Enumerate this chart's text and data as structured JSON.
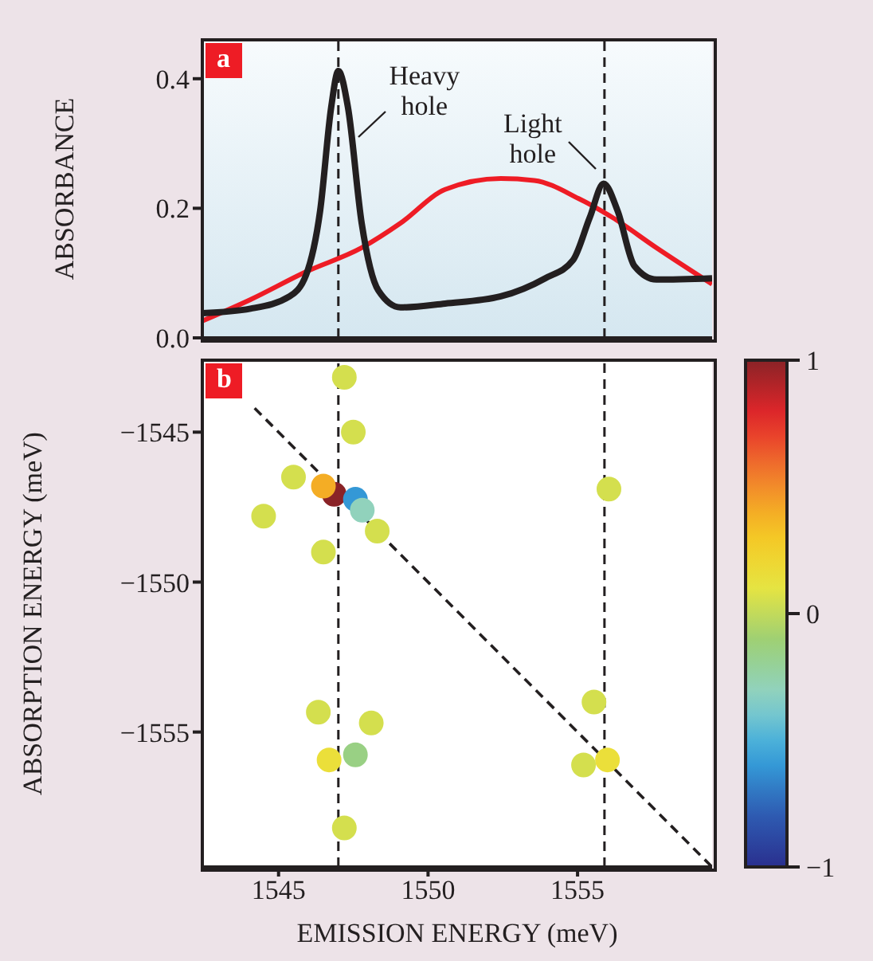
{
  "chart_data": [
    {
      "type": "line",
      "ylabel": "ABSORBANCE",
      "xlim": [
        1542.45,
        1559.5
      ],
      "ylim": [
        0,
        0.46
      ],
      "yticks": [
        {
          "value": 0,
          "label": "0.0"
        },
        0.2,
        0.4
      ],
      "tick_labels": "y",
      "grid": false,
      "line_style": "solid",
      "series": [
        {
          "color": "#ee1c25",
          "x": [
            1542.45,
            1544.06,
            1545.92,
            1547.78,
            1549.08,
            1550.57,
            1552.43,
            1553.55,
            1555.04,
            1556.16,
            1557.64,
            1559.5
          ],
          "values": [
            0.026,
            0.059,
            0.102,
            0.139,
            0.177,
            0.229,
            0.246,
            0.243,
            0.215,
            0.186,
            0.139,
            0.083
          ]
        },
        {
          "color": "#231f20",
          "x": [
            1542.45,
            1544.06,
            1545.37,
            1545.92,
            1546.39,
            1546.76,
            1547.0,
            1547.32,
            1547.78,
            1548.34,
            1549.08,
            1550.57,
            1552.43,
            1553.92,
            1554.85,
            1555.41,
            1555.87,
            1556.34,
            1556.9,
            1557.64,
            1559.5
          ],
          "values": [
            0.038,
            0.045,
            0.064,
            0.097,
            0.196,
            0.356,
            0.412,
            0.356,
            0.177,
            0.073,
            0.047,
            0.053,
            0.064,
            0.092,
            0.12,
            0.186,
            0.238,
            0.196,
            0.111,
            0.09,
            0.092
          ]
        }
      ],
      "ref_lines": [
        {
          "axis": "x",
          "value": 1547.0,
          "color": "#231f20",
          "line_style": "dashed"
        },
        {
          "axis": "x",
          "value": 1555.9,
          "color": "#231f20",
          "line_style": "dashed"
        }
      ],
      "annotations": [
        "a",
        {
          "text": "Heavy hole",
          "x": 1547.0,
          "y": 0.41
        },
        {
          "text": "Light hole",
          "x": 1555.9,
          "y": 0.24
        }
      ]
    },
    {
      "type": "scatter",
      "xlabel": "EMISSION ENERGY (meV)",
      "ylabel": "ABSORPTION ENERGY (meV)",
      "xlim": [
        1542.45,
        1559.5
      ],
      "ylim": [
        -1559.5,
        -1542.6
      ],
      "xticks": [
        1545,
        1550,
        1555
      ],
      "yticks": [
        {
          "value": -1545,
          "label": "−1545"
        },
        {
          "value": -1550,
          "label": "−1550"
        },
        {
          "value": -1555,
          "label": "−1555"
        }
      ],
      "clim": [
        -1,
        1
      ],
      "cticks": [
        {
          "value": -1,
          "label": "−1"
        },
        0,
        1
      ],
      "grid": false,
      "series": [
        {
          "type": "scatter",
          "marker": "circle",
          "x": [
            1546.86,
            1546.5,
            1547.57,
            1547.8,
            1545.5,
            1544.5,
            1547.5,
            1548.3,
            1546.5,
            1547.2,
            1546.69,
            1547.57,
            1548.1,
            1547.2,
            1546.33,
            1556.0,
            1555.2,
            1555.55,
            1556.05
          ],
          "values": [
            -1547.07,
            -1546.8,
            -1547.24,
            -1547.6,
            -1546.5,
            -1547.8,
            -1545.0,
            -1548.3,
            -1549.0,
            -1543.17,
            -1555.93,
            -1555.76,
            -1554.7,
            -1558.2,
            -1554.34,
            -1555.93,
            -1556.1,
            -1554.0,
            -1546.9
          ],
          "cvalues": [
            1.0,
            0.4,
            -0.6,
            -0.3,
            0.05,
            0.05,
            0.05,
            0.05,
            0.05,
            0.05,
            0.15,
            -0.15,
            0.05,
            0.05,
            0.05,
            0.15,
            0.05,
            0.05,
            0.05
          ],
          "colors": [
            "#8a2327",
            "#f4ad25",
            "#3498d6",
            "#91d2bc",
            "#d4df4e",
            "#d4df4e",
            "#d4df4e",
            "#d4df4e",
            "#d4df4e",
            "#d4df4e",
            "#ebdf3a",
            "#99d084",
            "#d4df4e",
            "#d4df4e",
            "#d4df4e",
            "#ebdf3a",
            "#d4df4e",
            "#d4df4e",
            "#d4df4e"
          ]
        },
        {
          "type": "line",
          "color": "#231f20",
          "line_style": "dashed",
          "x": [
            1544.2,
            1559.5
          ],
          "values": [
            -1544.2,
            -1559.5
          ]
        }
      ],
      "ref_lines": [
        {
          "axis": "x",
          "value": 1547.0,
          "color": "#231f20",
          "line_style": "dashed"
        },
        {
          "axis": "x",
          "value": 1555.9,
          "color": "#231f20",
          "line_style": "dashed"
        }
      ],
      "annotations": [
        "b"
      ]
    }
  ]
}
